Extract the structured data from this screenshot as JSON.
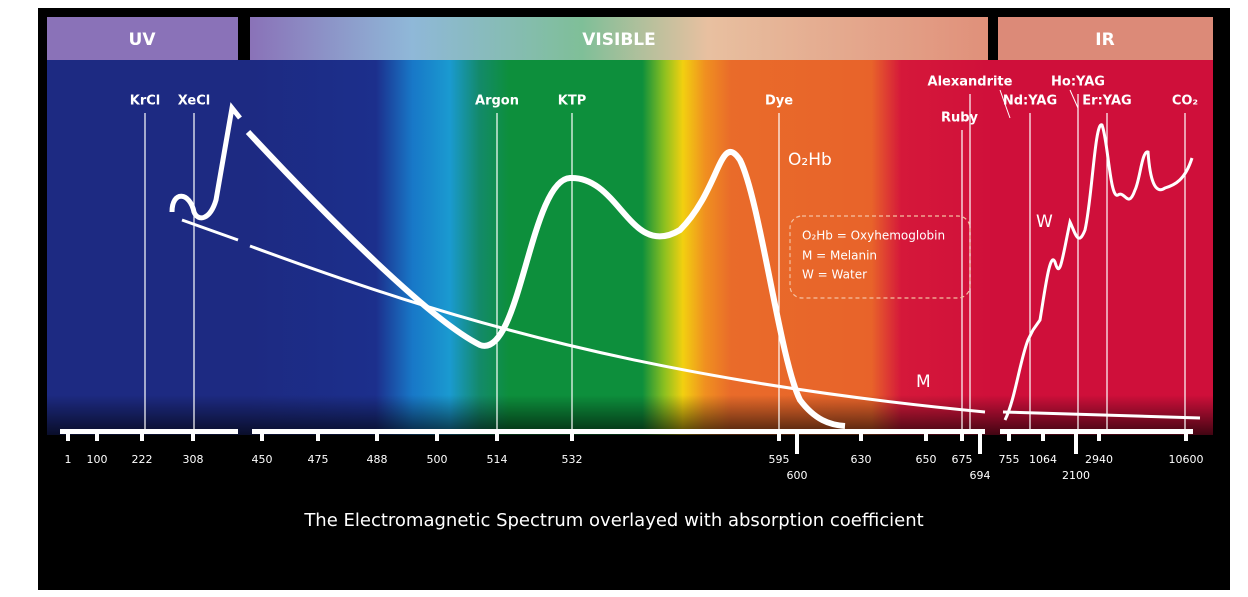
{
  "bands": [
    {
      "label": "UV"
    },
    {
      "label": "VISIBLE"
    },
    {
      "label": "IR"
    }
  ],
  "lasers": [
    {
      "label": "KrCl"
    },
    {
      "label": "XeCl"
    },
    {
      "label": "Argon"
    },
    {
      "label": "KTP"
    },
    {
      "label": "Dye"
    },
    {
      "label": "Ruby"
    },
    {
      "label": "Alexandrite"
    },
    {
      "label": "Nd:YAG"
    },
    {
      "label": "Ho:YAG"
    },
    {
      "label": "Er:YAG"
    },
    {
      "label": "CO₂"
    }
  ],
  "ticks": [
    {
      "label": "1"
    },
    {
      "label": "100"
    },
    {
      "label": "222"
    },
    {
      "label": "308"
    },
    {
      "label": "450"
    },
    {
      "label": "475"
    },
    {
      "label": "488"
    },
    {
      "label": "500"
    },
    {
      "label": "514"
    },
    {
      "label": "532"
    },
    {
      "label": "595"
    },
    {
      "label": "600"
    },
    {
      "label": "630"
    },
    {
      "label": "650"
    },
    {
      "label": "675"
    },
    {
      "label": "694"
    },
    {
      "label": "755"
    },
    {
      "label": "1064"
    },
    {
      "label": "2100"
    },
    {
      "label": "2940"
    },
    {
      "label": "10600"
    }
  ],
  "curve_labels": {
    "oxyhemoglobin": "O₂Hb",
    "water": "W",
    "melanin": "M"
  },
  "legend": [
    "O₂Hb = Oxyhemoglobin",
    "M = Melanin",
    "W = Water"
  ],
  "caption": "The Electromagnetic Spectrum overlayed with absorption coefficient"
}
